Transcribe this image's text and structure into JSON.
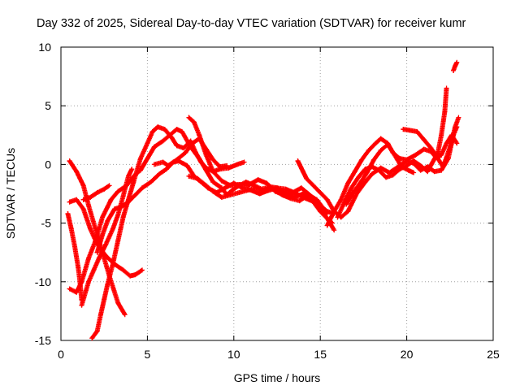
{
  "chart_data": {
    "type": "scatter",
    "title": "Day 332 of 2025, Sidereal Day-to-day VTEC variation (SDTVAR) for receiver kumr",
    "xlabel": "GPS time / hours",
    "ylabel": "SDTVAR / TECUs",
    "xlim": [
      0,
      25
    ],
    "ylim": [
      -15,
      10
    ],
    "xticks": [
      0,
      5,
      10,
      15,
      20,
      25
    ],
    "yticks": [
      -15,
      -10,
      -5,
      0,
      5,
      10
    ],
    "grid": true,
    "legend": "none",
    "marker": "plus",
    "color": "#ff0000",
    "series": [
      {
        "points": [
          [
            0.5,
            0.3
          ],
          [
            0.9,
            -0.6
          ],
          [
            1.3,
            -1.8
          ],
          [
            1.6,
            -3.5
          ],
          [
            2.0,
            -5.5
          ],
          [
            2.4,
            -7.5
          ],
          [
            2.8,
            -9.5
          ],
          [
            3.3,
            -11.8
          ],
          [
            3.7,
            -12.8
          ]
        ]
      },
      {
        "points": [
          [
            0.4,
            -4.2
          ],
          [
            0.6,
            -5.5
          ],
          [
            0.8,
            -7.0
          ],
          [
            1.0,
            -8.8
          ],
          [
            1.1,
            -10.0
          ],
          [
            1.2,
            -11.6
          ]
        ]
      },
      {
        "points": [
          [
            0.5,
            -3.2
          ],
          [
            0.9,
            -3.0
          ],
          [
            1.3,
            -3.8
          ],
          [
            1.7,
            -5.5
          ],
          [
            2.1,
            -6.8
          ],
          [
            2.6,
            -7.8
          ],
          [
            3.1,
            -8.5
          ],
          [
            3.6,
            -9.0
          ],
          [
            4.0,
            -9.5
          ],
          [
            4.3,
            -9.4
          ],
          [
            4.7,
            -9.0
          ]
        ]
      },
      {
        "points": [
          [
            0.5,
            -10.6
          ],
          [
            0.9,
            -10.9
          ],
          [
            1.2,
            -10.0
          ],
          [
            1.6,
            -8.0
          ],
          [
            2.0,
            -6.5
          ],
          [
            2.4,
            -4.5
          ],
          [
            2.9,
            -3.0
          ],
          [
            3.3,
            -2.3
          ],
          [
            3.8,
            -1.8
          ],
          [
            4.2,
            -1.0
          ],
          [
            4.6,
            -0.5
          ],
          [
            5.0,
            0.5
          ],
          [
            5.4,
            1.5
          ],
          [
            5.9,
            2.0
          ],
          [
            6.3,
            2.5
          ],
          [
            6.7,
            3.0
          ],
          [
            7.0,
            2.8
          ],
          [
            7.5,
            1.5
          ],
          [
            8.0,
            0.5
          ],
          [
            8.4,
            -0.5
          ],
          [
            8.8,
            -1.5
          ],
          [
            9.3,
            -2.0
          ],
          [
            9.6,
            -2.6
          ],
          [
            9.9,
            -2.2
          ],
          [
            10.3,
            -1.8
          ],
          [
            10.7,
            -1.5
          ],
          [
            11.2,
            -1.8
          ],
          [
            11.6,
            -2.1
          ],
          [
            12.1,
            -1.9
          ],
          [
            12.5,
            -2.0
          ],
          [
            13.0,
            -2.1
          ],
          [
            13.5,
            -2.4
          ],
          [
            14.0,
            -2.8
          ],
          [
            14.5,
            -3.1
          ],
          [
            15.0,
            -3.5
          ],
          [
            15.4,
            -4.0
          ],
          [
            15.8,
            -4.2
          ]
        ]
      },
      {
        "points": [
          [
            1.8,
            -14.8
          ],
          [
            2.1,
            -14.2
          ],
          [
            2.3,
            -12.8
          ],
          [
            2.5,
            -11.5
          ],
          [
            2.7,
            -10.2
          ],
          [
            3.0,
            -8.5
          ],
          [
            3.3,
            -6.5
          ],
          [
            3.6,
            -4.5
          ],
          [
            3.9,
            -3.0
          ],
          [
            4.2,
            -1.5
          ],
          [
            4.6,
            0.5
          ],
          [
            5.0,
            1.8
          ],
          [
            5.3,
            2.8
          ],
          [
            5.6,
            3.2
          ],
          [
            6.0,
            3.0
          ],
          [
            6.4,
            2.3
          ],
          [
            6.7,
            1.6
          ],
          [
            7.1,
            1.4
          ],
          [
            7.5,
            2.0
          ],
          [
            7.8,
            1.0
          ],
          [
            8.1,
            0.2
          ],
          [
            8.4,
            -0.3
          ],
          [
            8.8,
            -0.6
          ],
          [
            9.2,
            -0.4
          ],
          [
            9.7,
            -0.3
          ],
          [
            10.2,
            0.0
          ],
          [
            10.6,
            0.2
          ]
        ]
      },
      {
        "points": [
          [
            2.1,
            -7.5
          ],
          [
            2.4,
            -6.0
          ],
          [
            2.7,
            -4.8
          ],
          [
            3.1,
            -3.8
          ],
          [
            3.5,
            -3.6
          ],
          [
            3.9,
            -3.2
          ],
          [
            4.3,
            -2.6
          ],
          [
            4.7,
            -2.0
          ],
          [
            5.2,
            -1.5
          ],
          [
            5.7,
            -0.8
          ],
          [
            6.1,
            -0.4
          ],
          [
            6.5,
            0.2
          ],
          [
            6.8,
            0.3
          ],
          [
            7.3,
            -0.1
          ],
          [
            7.7,
            -1.0
          ],
          [
            8.1,
            -1.5
          ],
          [
            8.5,
            -2.0
          ],
          [
            9.0,
            -2.4
          ],
          [
            9.5,
            -2.0
          ],
          [
            10.0,
            -1.6
          ],
          [
            10.5,
            -2.0
          ],
          [
            11.0,
            -2.2
          ],
          [
            11.5,
            -2.5
          ],
          [
            12.0,
            -2.2
          ],
          [
            12.5,
            -2.0
          ],
          [
            13.0,
            -2.4
          ],
          [
            13.5,
            -2.8
          ],
          [
            14.0,
            -2.5
          ],
          [
            14.5,
            -3.0
          ],
          [
            15.0,
            -4.0
          ],
          [
            15.4,
            -4.6
          ],
          [
            15.8,
            -5.6
          ]
        ]
      },
      {
        "points": [
          [
            1.2,
            -12.0
          ],
          [
            1.6,
            -10.0
          ],
          [
            1.9,
            -9.0
          ],
          [
            2.2,
            -8.0
          ],
          [
            2.6,
            -6.8
          ],
          [
            3.0,
            -5.5
          ],
          [
            3.3,
            -4.3
          ],
          [
            3.6,
            -2.7
          ],
          [
            3.9,
            -1.0
          ],
          [
            4.1,
            -0.4
          ]
        ]
      },
      {
        "points": [
          [
            1.3,
            -3.0
          ],
          [
            1.7,
            -2.8
          ],
          [
            2.1,
            -2.4
          ],
          [
            2.5,
            -2.1
          ],
          [
            2.8,
            -1.8
          ]
        ]
      },
      {
        "points": [
          [
            5.4,
            0.0
          ],
          [
            5.9,
            0.2
          ],
          [
            6.2,
            -0.1
          ],
          [
            6.7,
            0.4
          ],
          [
            7.2,
            1.0
          ],
          [
            7.6,
            1.8
          ],
          [
            8.0,
            2.2
          ],
          [
            8.4,
            1.3
          ],
          [
            8.8,
            0.4
          ],
          [
            9.2,
            -0.2
          ],
          [
            9.6,
            -0.1
          ]
        ]
      },
      {
        "points": [
          [
            7.4,
            4.0
          ],
          [
            7.7,
            3.6
          ],
          [
            8.0,
            2.5
          ],
          [
            8.4,
            0.8
          ],
          [
            8.8,
            -0.6
          ],
          [
            9.3,
            -1.4
          ],
          [
            9.8,
            -1.8
          ],
          [
            10.3,
            -1.7
          ],
          [
            10.8,
            -1.8
          ],
          [
            11.4,
            -1.3
          ],
          [
            11.9,
            -1.6
          ],
          [
            12.4,
            -2.3
          ],
          [
            12.9,
            -2.6
          ],
          [
            13.4,
            -2.4
          ],
          [
            13.9,
            -2.0
          ],
          [
            14.4,
            -2.6
          ],
          [
            14.8,
            -3.1
          ],
          [
            15.2,
            -4.3
          ],
          [
            15.7,
            -5.0
          ]
        ]
      },
      {
        "points": [
          [
            7.4,
            -1.0
          ],
          [
            7.9,
            -1.2
          ],
          [
            8.4,
            -1.8
          ],
          [
            8.8,
            -2.3
          ],
          [
            9.3,
            -2.8
          ],
          [
            9.8,
            -2.6
          ],
          [
            10.3,
            -2.4
          ],
          [
            10.8,
            -2.2
          ],
          [
            11.3,
            -2.0
          ],
          [
            11.8,
            -2.3
          ],
          [
            12.3,
            -2.1
          ],
          [
            12.8,
            -2.6
          ],
          [
            13.3,
            -2.9
          ],
          [
            13.8,
            -3.1
          ],
          [
            14.3,
            -2.6
          ],
          [
            14.8,
            -3.0
          ],
          [
            15.1,
            -3.6
          ],
          [
            15.4,
            -4.2
          ]
        ]
      },
      {
        "points": [
          [
            13.7,
            0.3
          ],
          [
            14.0,
            -0.6
          ],
          [
            14.2,
            -1.2
          ],
          [
            14.6,
            -1.8
          ],
          [
            15.0,
            -2.4
          ],
          [
            15.4,
            -3.0
          ],
          [
            15.8,
            -4.0
          ],
          [
            16.2,
            -4.5
          ],
          [
            16.6,
            -4.0
          ],
          [
            17.1,
            -2.5
          ],
          [
            17.6,
            -1.5
          ],
          [
            18.0,
            -0.8
          ],
          [
            18.5,
            -0.3
          ],
          [
            19.0,
            -0.7
          ],
          [
            19.5,
            -0.2
          ],
          [
            20.0,
            0.3
          ],
          [
            20.4,
            0.1
          ],
          [
            20.8,
            -0.5
          ],
          [
            21.2,
            -0.2
          ],
          [
            21.6,
            -0.6
          ],
          [
            22.0,
            -0.5
          ],
          [
            22.4,
            0.5
          ],
          [
            22.7,
            2.5
          ],
          [
            22.9,
            3.2
          ]
        ]
      },
      {
        "points": [
          [
            15.4,
            -5.2
          ],
          [
            15.8,
            -4.0
          ],
          [
            16.2,
            -3.0
          ],
          [
            16.6,
            -1.6
          ],
          [
            17.0,
            -0.6
          ],
          [
            17.4,
            0.4
          ],
          [
            17.8,
            1.2
          ],
          [
            18.2,
            1.8
          ],
          [
            18.5,
            2.2
          ],
          [
            18.9,
            1.8
          ],
          [
            19.2,
            1.0
          ],
          [
            19.6,
            0.5
          ],
          [
            20.0,
            0.4
          ],
          [
            20.5,
            0.8
          ],
          [
            21.0,
            1.3
          ],
          [
            21.4,
            1.1
          ],
          [
            21.7,
            0.6
          ],
          [
            22.0,
            0.8
          ],
          [
            22.3,
            1.8
          ],
          [
            22.6,
            2.5
          ],
          [
            22.9,
            1.8
          ]
        ]
      },
      {
        "points": [
          [
            16.0,
            -4.5
          ],
          [
            16.4,
            -3.2
          ],
          [
            16.8,
            -2.0
          ],
          [
            17.2,
            -1.1
          ],
          [
            17.6,
            -0.4
          ],
          [
            18.0,
            -0.2
          ],
          [
            18.4,
            -0.5
          ],
          [
            18.8,
            -1.1
          ],
          [
            19.2,
            -0.9
          ],
          [
            19.6,
            -0.4
          ],
          [
            20.0,
            -0.1
          ],
          [
            20.4,
            0.3
          ],
          [
            20.8,
            -0.1
          ],
          [
            21.2,
            -0.6
          ],
          [
            21.5,
            0.2
          ],
          [
            21.8,
            1.0
          ],
          [
            22.0,
            2.5
          ],
          [
            22.2,
            4.5
          ],
          [
            22.3,
            6.5
          ]
        ]
      },
      {
        "points": [
          [
            16.5,
            -3.4
          ],
          [
            16.9,
            -2.4
          ],
          [
            17.3,
            -1.6
          ],
          [
            17.7,
            -0.7
          ],
          [
            18.1,
            0.4
          ],
          [
            18.5,
            1.2
          ],
          [
            18.9,
            1.7
          ],
          [
            19.3,
            0.8
          ],
          [
            19.7,
            -0.2
          ],
          [
            20.1,
            -0.5
          ],
          [
            20.4,
            -0.7
          ]
        ]
      },
      {
        "points": [
          [
            19.8,
            3.0
          ],
          [
            20.2,
            2.9
          ],
          [
            20.6,
            2.8
          ],
          [
            21.0,
            2.1
          ],
          [
            21.4,
            1.4
          ],
          [
            21.8,
            0.5
          ],
          [
            22.1,
            -0.2
          ],
          [
            22.3,
            0.6
          ],
          [
            22.6,
            1.9
          ],
          [
            22.8,
            3.2
          ],
          [
            23.0,
            4.0
          ]
        ]
      },
      {
        "points": [
          [
            22.7,
            8.0
          ],
          [
            22.8,
            8.4
          ],
          [
            22.9,
            8.7
          ]
        ]
      }
    ]
  }
}
